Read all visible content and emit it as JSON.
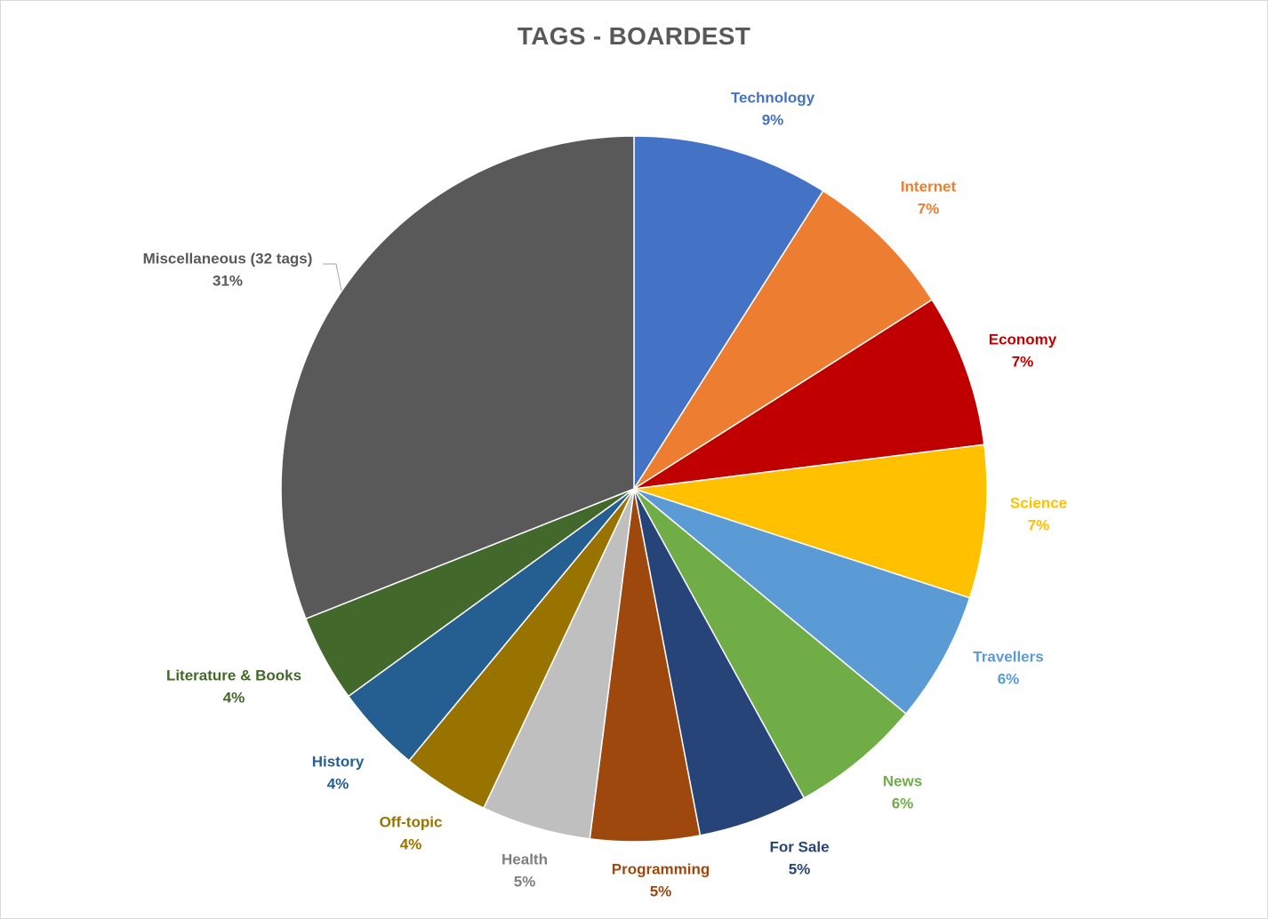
{
  "chart_data": {
    "type": "pie",
    "title": "TAGS - BOARDEST",
    "slices": [
      {
        "label": "Technology",
        "value": 9,
        "percent_label": "9%",
        "color": "#4472C4"
      },
      {
        "label": "Internet",
        "value": 7,
        "percent_label": "7%",
        "color": "#ED7D31"
      },
      {
        "label": "Economy",
        "value": 7,
        "percent_label": "7%",
        "color": "#C00000"
      },
      {
        "label": "Science",
        "value": 7,
        "percent_label": "7%",
        "color": "#FFC000"
      },
      {
        "label": "Travellers",
        "value": 6,
        "percent_label": "6%",
        "color": "#5B9BD5"
      },
      {
        "label": "News",
        "value": 6,
        "percent_label": "6%",
        "color": "#70AD47"
      },
      {
        "label": "For Sale",
        "value": 5,
        "percent_label": "5%",
        "color": "#264478"
      },
      {
        "label": "Programming",
        "value": 5,
        "percent_label": "5%",
        "color": "#9E480E"
      },
      {
        "label": "Health",
        "value": 5,
        "percent_label": "5%",
        "color": "#BFBFBF"
      },
      {
        "label": "Off-topic",
        "value": 4,
        "percent_label": "4%",
        "color": "#997300"
      },
      {
        "label": "History",
        "value": 4,
        "percent_label": "4%",
        "color": "#255E91"
      },
      {
        "label": "Literature & Books",
        "value": 4,
        "percent_label": "4%",
        "color": "#43682B"
      },
      {
        "label": "Miscellaneous (32 tags)",
        "value": 31,
        "percent_label": "31%",
        "color": "#595959"
      }
    ],
    "label_colors": {
      "Technology": "#4472C4",
      "Internet": "#ED7D31",
      "Economy": "#C00000",
      "Science": "#FFC000",
      "Travellers": "#5B9BD5",
      "News": "#70AD47",
      "For Sale": "#264478",
      "Programming": "#9E480E",
      "Health": "#7F7F7F",
      "Off-topic": "#997300",
      "History": "#255E91",
      "Literature & Books": "#43682B",
      "Miscellaneous (32 tags)": "#595959"
    },
    "legend": "none"
  }
}
